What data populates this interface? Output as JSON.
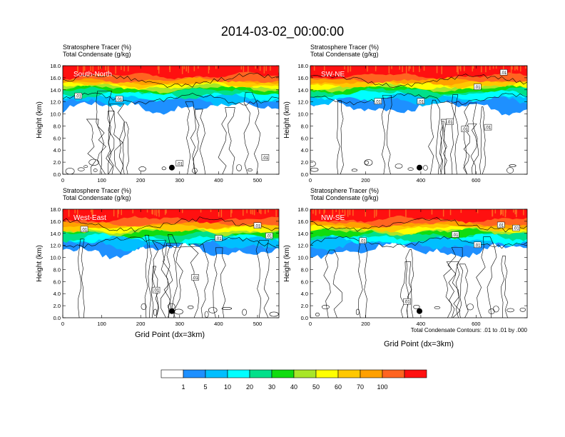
{
  "title": "2014-03-02_00:00:00",
  "colors": {
    "levels": [
      "#ffffff",
      "#1e90ff",
      "#00bfff",
      "#00ffff",
      "#00e08a",
      "#10dc10",
      "#a8e628",
      "#ffff00",
      "#ffc800",
      "#ffa000",
      "#ff6420",
      "#ff1010"
    ],
    "contour": "#000000",
    "frame": "#000000"
  },
  "shared": {
    "subtitle_tracer": "Stratosphere Tracer   (%)",
    "subtitle_condensate": "Total Condensate   (g/kg)",
    "ylabel": "Height (km)",
    "xlabel": "Grid Point (dx=3km)",
    "contour_note": "Total Condensate Contours: .01 to .01 by .000",
    "colorbar_labels": [
      "1",
      "5",
      "10",
      "20",
      "30",
      "40",
      "50",
      "60",
      "70",
      "100"
    ]
  },
  "chart_data": [
    {
      "type": "heatmap",
      "panel_label": "South-North",
      "xlim": [
        0,
        555
      ],
      "ylim": [
        0,
        18
      ],
      "xticks": [
        "0",
        "100",
        "200",
        "300",
        "400",
        "500"
      ],
      "yticks": [
        "0.0",
        "2.0",
        "4.0",
        "6.0",
        "8.0",
        "10.0",
        "12.0",
        "14.0",
        "16.0",
        "18.0"
      ],
      "contour_labels": [
        {
          "x": 40,
          "y": 13,
          "text": ".01"
        },
        {
          "x": 145,
          "y": 12.5,
          "text": ".01"
        },
        {
          "x": 300,
          "y": 1.8,
          "text": ".01"
        },
        {
          "x": 520,
          "y": 2.8,
          "text": ".01"
        }
      ],
      "marker": {
        "x": 280,
        "y": 1.1
      }
    },
    {
      "type": "heatmap",
      "panel_label": "SW-NE",
      "xlim": [
        0,
        785
      ],
      "ylim": [
        0,
        18
      ],
      "xticks": [
        "0",
        "200",
        "400",
        "600"
      ],
      "yticks": [
        "0.0",
        "2.0",
        "4.0",
        "6.0",
        "8.0",
        "10.0",
        "12.0",
        "14.0",
        "16.0",
        "18.0"
      ],
      "contour_labels": [
        {
          "x": 700,
          "y": 16.9,
          "text": ".01"
        },
        {
          "x": 605,
          "y": 14.5,
          "text": ".01"
        },
        {
          "x": 400,
          "y": 12.1,
          "text": ".01"
        },
        {
          "x": 245,
          "y": 12.1,
          "text": ".01"
        },
        {
          "x": 505,
          "y": 8.7,
          "text": ".01"
        },
        {
          "x": 643,
          "y": 7.8,
          "text": ".01"
        },
        {
          "x": 560,
          "y": 7.5,
          "text": ".01"
        }
      ],
      "marker": {
        "x": 395,
        "y": 1.1
      }
    },
    {
      "type": "heatmap",
      "panel_label": "West-East",
      "xlim": [
        0,
        555
      ],
      "ylim": [
        0,
        18
      ],
      "xticks": [
        "0",
        "100",
        "200",
        "300",
        "400",
        "500"
      ],
      "yticks": [
        "0.0",
        "2.0",
        "4.0",
        "6.0",
        "8.0",
        "10.0",
        "12.0",
        "14.0",
        "16.0",
        "18.0"
      ],
      "contour_labels": [
        {
          "x": 55,
          "y": 14.7,
          "text": ".01"
        },
        {
          "x": 400,
          "y": 13.2,
          "text": ".01"
        },
        {
          "x": 500,
          "y": 15.3,
          "text": ".01"
        },
        {
          "x": 530,
          "y": 13.6,
          "text": ".01"
        },
        {
          "x": 340,
          "y": 6.7,
          "text": ".01"
        },
        {
          "x": 240,
          "y": 4.6,
          "text": ".01"
        }
      ],
      "marker": {
        "x": 280,
        "y": 1.1
      }
    },
    {
      "type": "heatmap",
      "panel_label": "NW-SE",
      "xlim": [
        0,
        785
      ],
      "ylim": [
        0,
        18
      ],
      "xticks": [
        "0",
        "200",
        "400",
        "600"
      ],
      "yticks": [
        "0.0",
        "2.0",
        "4.0",
        "6.0",
        "8.0",
        "10.0",
        "12.0",
        "14.0",
        "16.0",
        "18.0"
      ],
      "contour_labels": [
        {
          "x": 690,
          "y": 15.4,
          "text": ".01"
        },
        {
          "x": 525,
          "y": 13.8,
          "text": ".01"
        },
        {
          "x": 605,
          "y": 12.1,
          "text": ".01"
        },
        {
          "x": 190,
          "y": 12.8,
          "text": ".01"
        },
        {
          "x": 745,
          "y": 14.9,
          "text": ".01"
        },
        {
          "x": 350,
          "y": 2.7,
          "text": ".01"
        }
      ],
      "marker": {
        "x": 395,
        "y": 1.1
      }
    }
  ]
}
